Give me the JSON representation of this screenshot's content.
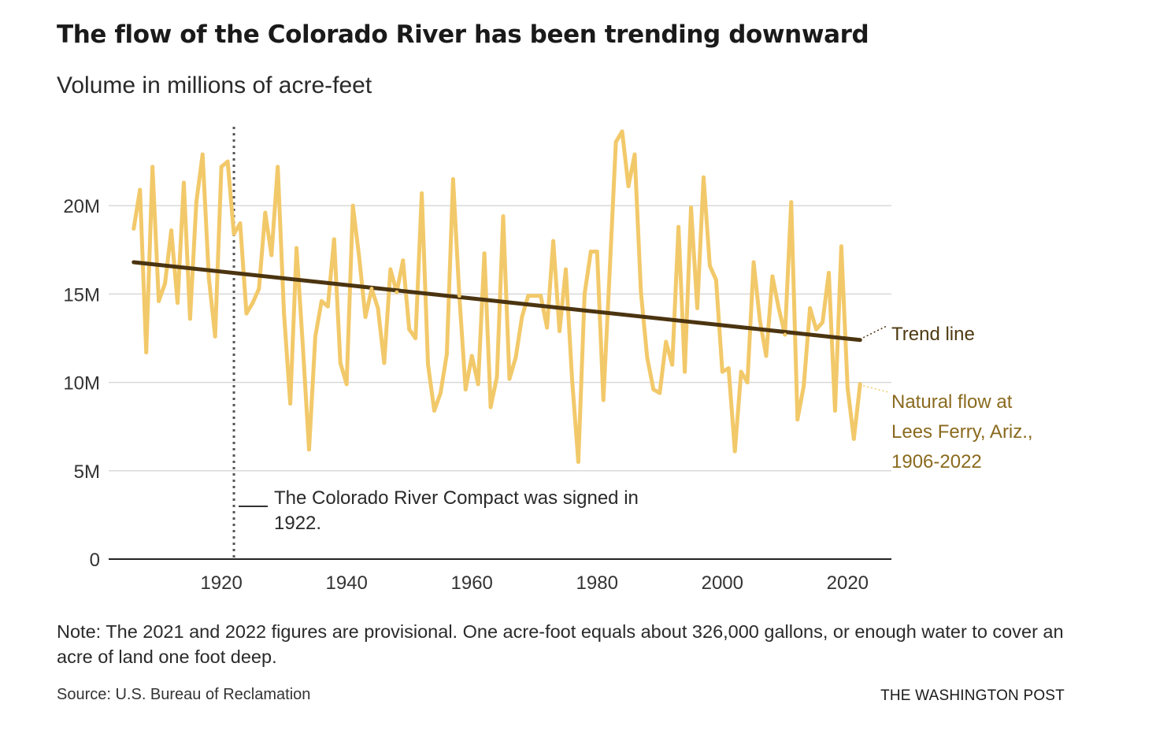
{
  "title": "The flow of the Colorado River has been trending downward",
  "subtitle": "Volume in millions of acre-feet",
  "note": "Note: The 2021 and 2022 figures are provisional. One acre-foot equals about 326,000 gallons, or enough water to cover an acre of land one foot deep.",
  "source": "Source: U.S. Bureau of Reclamation",
  "credit": "THE WASHINGTON POST",
  "colors": {
    "flow": "#f2c96a",
    "trend": "#4b3410",
    "grid": "#d9d9d9",
    "annotation_line": "#555555"
  },
  "chart_data": {
    "type": "line",
    "x_start": 1906,
    "xlim": [
      1902,
      2027
    ],
    "ylim": [
      0,
      25
    ],
    "grid": true,
    "x_ticks": [
      1920,
      1940,
      1960,
      1980,
      2000,
      2020
    ],
    "x_tick_labels": [
      "1920",
      "1940",
      "1960",
      "1980",
      "2000",
      "2020"
    ],
    "y_ticks": [
      0,
      5,
      10,
      15,
      20
    ],
    "y_tick_labels": [
      "0",
      "5M",
      "10M",
      "15M",
      "20M"
    ],
    "series": [
      {
        "name": "Natural flow at Lees Ferry, Ariz., 1906-2022",
        "label_lines": [
          "Natural flow at",
          "Lees Ferry, Ariz.,",
          "1906-2022"
        ],
        "years": [
          1906,
          1907,
          1908,
          1909,
          1910,
          1911,
          1912,
          1913,
          1914,
          1915,
          1916,
          1917,
          1918,
          1919,
          1920,
          1921,
          1922,
          1923,
          1924,
          1925,
          1926,
          1927,
          1928,
          1929,
          1930,
          1931,
          1932,
          1933,
          1934,
          1935,
          1936,
          1937,
          1938,
          1939,
          1940,
          1941,
          1942,
          1943,
          1944,
          1945,
          1946,
          1947,
          1948,
          1949,
          1950,
          1951,
          1952,
          1953,
          1954,
          1955,
          1956,
          1957,
          1958,
          1959,
          1960,
          1961,
          1962,
          1963,
          1964,
          1965,
          1966,
          1967,
          1968,
          1969,
          1970,
          1971,
          1972,
          1973,
          1974,
          1975,
          1976,
          1977,
          1978,
          1979,
          1980,
          1981,
          1982,
          1983,
          1984,
          1985,
          1986,
          1987,
          1988,
          1989,
          1990,
          1991,
          1992,
          1993,
          1994,
          1995,
          1996,
          1997,
          1998,
          1999,
          2000,
          2001,
          2002,
          2003,
          2004,
          2005,
          2006,
          2007,
          2008,
          2009,
          2010,
          2011,
          2012,
          2013,
          2014,
          2015,
          2016,
          2017,
          2018,
          2019,
          2020,
          2021,
          2022
        ],
        "values": [
          18.7,
          20.9,
          11.7,
          22.2,
          14.6,
          15.6,
          18.6,
          14.5,
          21.3,
          13.6,
          20.2,
          22.9,
          15.9,
          12.6,
          22.2,
          22.5,
          18.4,
          19.0,
          13.9,
          14.5,
          15.3,
          19.6,
          17.2,
          22.2,
          13.9,
          8.8,
          17.6,
          12.1,
          6.2,
          12.6,
          14.6,
          14.3,
          18.1,
          11.1,
          9.9,
          20.0,
          17.1,
          13.7,
          15.3,
          14.2,
          11.1,
          16.4,
          15.1,
          16.9,
          13.0,
          12.5,
          20.7,
          11.0,
          8.4,
          9.4,
          11.6,
          21.5,
          14.9,
          9.6,
          11.5,
          9.9,
          17.3,
          8.6,
          10.3,
          19.4,
          10.2,
          11.4,
          13.7,
          14.9,
          14.9,
          14.9,
          13.1,
          18.0,
          12.9,
          16.4,
          10.2,
          5.5,
          15.0,
          17.4,
          17.4,
          9.0,
          16.2,
          23.6,
          24.2,
          21.1,
          22.9,
          15.1,
          11.4,
          9.6,
          9.4,
          12.3,
          11.0,
          18.8,
          10.6,
          19.9,
          14.2,
          21.6,
          16.6,
          15.8,
          10.6,
          10.8,
          6.1,
          10.6,
          10.0,
          16.8,
          13.5,
          11.5,
          16.0,
          14.2,
          12.7,
          20.2,
          7.9,
          9.8,
          14.2,
          13.0,
          13.4,
          16.2,
          8.4,
          17.7,
          9.7,
          6.8,
          9.9
        ]
      },
      {
        "name": "Trend line",
        "label_lines": [
          "Trend line"
        ],
        "start": [
          1906,
          16.8
        ],
        "end": [
          2022,
          12.4
        ]
      }
    ],
    "annotations": [
      {
        "x": 1922,
        "text_lines": [
          "The Colorado River Compact was signed in",
          "1922."
        ]
      }
    ]
  }
}
